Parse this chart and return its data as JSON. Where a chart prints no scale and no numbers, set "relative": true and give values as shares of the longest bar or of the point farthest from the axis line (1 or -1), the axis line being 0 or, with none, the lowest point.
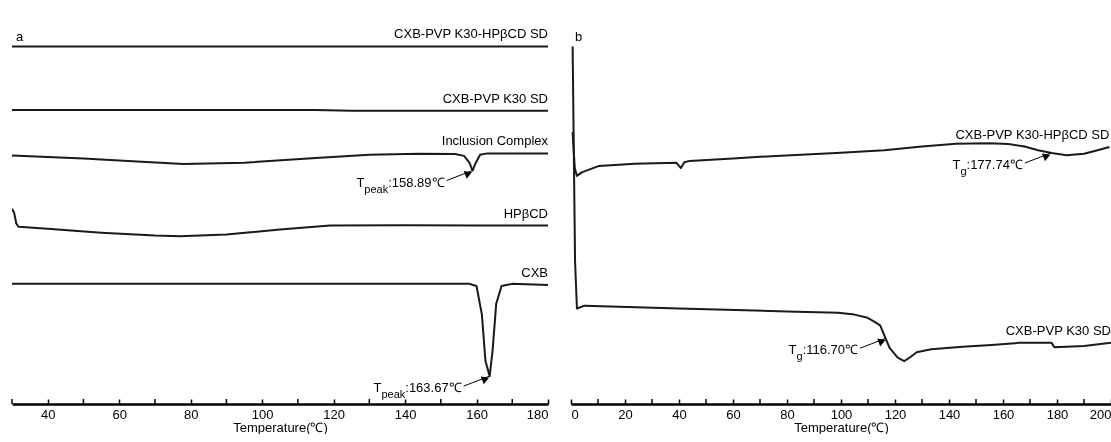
{
  "chart_data": [
    {
      "type": "line",
      "title": "a",
      "xlabel": "Temperature(℃)",
      "relative": true,
      "xlim": [
        30,
        180
      ],
      "xticks": [
        {
          "value": 30,
          "label": null
        },
        40,
        {
          "value": 50,
          "label": null
        },
        60,
        {
          "value": 70,
          "label": null
        },
        80,
        {
          "value": 90,
          "label": null
        },
        100,
        {
          "value": 110,
          "label": null
        },
        120,
        {
          "value": 130,
          "label": null
        },
        140,
        {
          "value": 150,
          "label": null
        },
        160,
        {
          "value": 170,
          "label": null
        },
        180
      ],
      "series": [
        {
          "name": "CXB-PVP K30-HPβCD SD",
          "color": "#1a1a1a",
          "x": [
            30,
            60,
            100,
            140,
            180
          ],
          "values": [
            1.0,
            1.0,
            1.0,
            1.0,
            1.0
          ]
        },
        {
          "name": "CXB-PVP K30 SD",
          "color": "#1a1a1a",
          "x": [
            30,
            60,
            100,
            115,
            125,
            150,
            180
          ],
          "values": [
            0.822,
            0.822,
            0.822,
            0.822,
            0.82,
            0.82,
            0.82
          ]
        },
        {
          "name": "Inclusion Complex",
          "color": "#1a1a1a",
          "x": [
            30,
            50,
            65,
            78,
            95,
            115,
            130,
            144,
            154,
            156.5,
            158,
            158.89,
            159.8,
            161,
            163,
            170,
            180
          ],
          "values": [
            0.695,
            0.687,
            0.678,
            0.671,
            0.675,
            0.688,
            0.697,
            0.7,
            0.699,
            0.694,
            0.675,
            0.653,
            0.675,
            0.697,
            0.701,
            0.701,
            0.701
          ]
        },
        {
          "name": "HPβCD",
          "color": "#1a1a1a",
          "x": [
            30,
            30.6,
            31.2,
            31.8,
            40,
            55,
            70,
            77,
            90,
            105,
            119,
            140,
            160,
            180
          ],
          "values": [
            0.546,
            0.535,
            0.505,
            0.496,
            0.49,
            0.479,
            0.471,
            0.469,
            0.474,
            0.488,
            0.499,
            0.5,
            0.499,
            0.499
          ]
        },
        {
          "name": "CXB",
          "color": "#1a1a1a",
          "x": [
            30,
            80,
            130,
            158,
            160,
            161.5,
            162.5,
            163.67,
            164.5,
            165.5,
            167,
            170,
            180
          ],
          "values": [
            0.336,
            0.336,
            0.336,
            0.336,
            0.33,
            0.25,
            0.12,
            0.078,
            0.15,
            0.28,
            0.33,
            0.336,
            0.333
          ]
        }
      ],
      "annotations": [
        {
          "text": "T$_{peak}$:158.89℃",
          "x": 158.89,
          "y": 0.653
        },
        {
          "text": "T$_{peak}$:163.67℃",
          "x": 163.67,
          "y": 0.078
        }
      ]
    },
    {
      "type": "line",
      "title": "b",
      "xlabel": "Temperature(℃)",
      "relative": true,
      "xlim": [
        0,
        200
      ],
      "xticks": [
        0,
        {
          "value": 10,
          "label": null
        },
        20,
        {
          "value": 30,
          "label": null
        },
        40,
        {
          "value": 50,
          "label": null
        },
        60,
        {
          "value": 70,
          "label": null
        },
        80,
        {
          "value": 90,
          "label": null
        },
        100,
        {
          "value": 110,
          "label": null
        },
        120,
        {
          "value": 130,
          "label": null
        },
        140,
        {
          "value": 150,
          "label": null
        },
        160,
        {
          "value": 170,
          "label": null
        },
        180,
        {
          "value": 190,
          "label": null
        },
        200
      ],
      "series": [
        {
          "name": "CXB-PVP K30-HPβCD SD",
          "color": "#1a1a1a",
          "x": [
            0.6,
            1.4,
            2.2,
            4,
            10.4,
            23.5,
            39,
            40.7,
            42,
            44,
            60,
            76,
            100,
            116,
            130,
            142.6,
            155,
            162,
            168,
            173,
            178,
            183.6,
            190,
            195,
            199.4
          ],
          "values": [
            0.76,
            0.66,
            0.638,
            0.648,
            0.666,
            0.672,
            0.675,
            0.66,
            0.676,
            0.68,
            0.687,
            0.694,
            0.703,
            0.71,
            0.72,
            0.728,
            0.729,
            0.727,
            0.72,
            0.71,
            0.702,
            0.696,
            0.7,
            0.71,
            0.719
          ]
        },
        {
          "name": "CXB-PVP K30 SD",
          "color": "#1a1a1a",
          "x": [
            0.6,
            1.5,
            2.2,
            5,
            40,
            80,
            98.9,
            105,
            109.5,
            112,
            114.5,
            118,
            121,
            123.4,
            125.5,
            128,
            133.4,
            145,
            155.8,
            166,
            178,
            179,
            190,
            200
          ],
          "values": [
            1.0,
            0.4,
            0.267,
            0.275,
            0.267,
            0.259,
            0.255,
            0.25,
            0.242,
            0.232,
            0.22,
            0.157,
            0.13,
            0.12,
            0.13,
            0.145,
            0.153,
            0.16,
            0.165,
            0.171,
            0.171,
            0.159,
            0.162,
            0.171
          ]
        }
      ],
      "annotations": [
        {
          "text": "T$_{g}$:177.74℃",
          "x": 177.74,
          "y": 0.702
        },
        {
          "text": "T$_{g}$:116.70℃",
          "x": 116.7,
          "y": 0.184
        }
      ]
    }
  ]
}
